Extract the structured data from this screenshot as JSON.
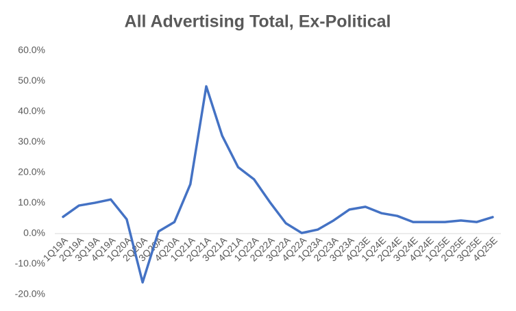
{
  "chart_data": {
    "type": "line",
    "title": "All Advertising Total, Ex-Political",
    "categories": [
      "1Q19A",
      "2Q19A",
      "3Q19A",
      "4Q19A",
      "1Q20A",
      "2Q20A",
      "3Q20A",
      "4Q20A",
      "1Q21A",
      "2Q21A",
      "3Q21A",
      "4Q21A",
      "1Q22A",
      "2Q22A",
      "3Q22A",
      "4Q22A",
      "1Q23A",
      "2Q23A",
      "3Q23A",
      "4Q23E",
      "1Q24E",
      "2Q24E",
      "3Q24E",
      "4Q24E",
      "1Q25E",
      "2Q25E",
      "3Q25E",
      "4Q25E"
    ],
    "series": [
      {
        "name": "All Advertising Total, Ex-Political",
        "color": "#4472c4",
        "values": [
          5.5,
          9.2,
          10.1,
          11.2,
          4.7,
          -16,
          0.7,
          3.8,
          16.2,
          48.3,
          32.1,
          21.8,
          17.8,
          10.3,
          3.4,
          0.2,
          1.3,
          4.3,
          7.9,
          8.8,
          6.7,
          5.8,
          3.8,
          3.8,
          3.8,
          4.3,
          3.8,
          5.4
        ]
      }
    ],
    "ylim": [
      -20,
      60
    ],
    "yticks": [
      {
        "value": -20,
        "label": "-20.0%"
      },
      {
        "value": -10,
        "label": "-10.0%"
      },
      {
        "value": 0,
        "label": "0.0%"
      },
      {
        "value": 10,
        "label": "10.0%"
      },
      {
        "value": 20,
        "label": "20.0%"
      },
      {
        "value": 30,
        "label": "30.0%"
      },
      {
        "value": 40,
        "label": "40.0%"
      },
      {
        "value": 50,
        "label": "50.0%"
      },
      {
        "value": 60,
        "label": "60.0%"
      }
    ],
    "grid": false
  }
}
